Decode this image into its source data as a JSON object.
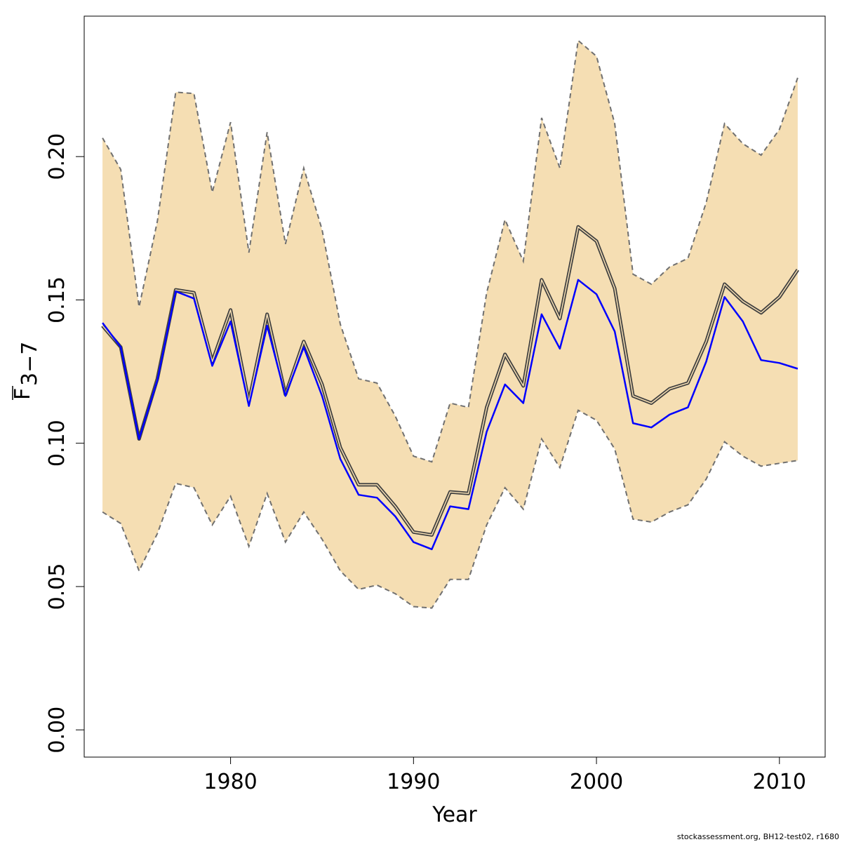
{
  "chart_data": {
    "type": "line",
    "xlabel": "Year",
    "ylabel": {
      "base": "F",
      "subscript": "3−7"
    },
    "xlim": [
      1972,
      2012.5
    ],
    "ylim": [
      -0.0095,
      0.249
    ],
    "xticks": [
      1980,
      1990,
      2000,
      2010
    ],
    "yticks": [
      0.0,
      0.05,
      0.1,
      0.15,
      0.2
    ],
    "ytick_labels": [
      "0.00",
      "0.05",
      "0.10",
      "0.15",
      "0.20"
    ],
    "grid": false,
    "x": [
      1973,
      1974,
      1975,
      1976,
      1977,
      1978,
      1979,
      1980,
      1981,
      1982,
      1983,
      1984,
      1985,
      1986,
      1987,
      1988,
      1989,
      1990,
      1991,
      1992,
      1993,
      1994,
      1995,
      1996,
      1997,
      1998,
      1999,
      2000,
      2001,
      2002,
      2003,
      2004,
      2005,
      2006,
      2007,
      2008,
      2009,
      2010,
      2011
    ],
    "band": {
      "upper": [
        0.2065,
        0.1955,
        0.1475,
        0.1775,
        0.2225,
        0.222,
        0.1875,
        0.212,
        0.1665,
        0.2085,
        0.1695,
        0.196,
        0.1745,
        0.1415,
        0.1225,
        0.121,
        0.1095,
        0.0955,
        0.0935,
        0.114,
        0.1125,
        0.1525,
        0.178,
        0.1635,
        0.2135,
        0.196,
        0.2405,
        0.235,
        0.2115,
        0.159,
        0.1555,
        0.1615,
        0.1645,
        0.184,
        0.2115,
        0.2045,
        0.2005,
        0.2095,
        0.2275
      ],
      "lower": [
        0.076,
        0.072,
        0.0555,
        0.0685,
        0.086,
        0.0845,
        0.0715,
        0.0815,
        0.064,
        0.0825,
        0.0655,
        0.076,
        0.0665,
        0.0555,
        0.049,
        0.0505,
        0.0475,
        0.043,
        0.0425,
        0.0525,
        0.0525,
        0.0715,
        0.0845,
        0.077,
        0.1015,
        0.0915,
        0.1115,
        0.108,
        0.098,
        0.0735,
        0.0725,
        0.076,
        0.0785,
        0.0875,
        0.1005,
        0.0955,
        0.092,
        0.093,
        0.094
      ],
      "fill": "#f5deb3",
      "edge_color": "#707070"
    },
    "series": [
      {
        "color": "#404040",
        "double_line": true,
        "values": [
          0.141,
          0.1335,
          0.1015,
          0.1225,
          0.1535,
          0.1525,
          0.1285,
          0.1465,
          0.1145,
          0.145,
          0.117,
          0.1355,
          0.1205,
          0.0985,
          0.0855,
          0.0855,
          0.078,
          0.069,
          0.068,
          0.083,
          0.0825,
          0.1125,
          0.131,
          0.12,
          0.157,
          0.1435,
          0.1755,
          0.1705,
          0.154,
          0.1165,
          0.114,
          0.119,
          0.121,
          0.1355,
          0.1555,
          0.1495,
          0.1455,
          0.151,
          0.1605
        ]
      },
      {
        "color": "#0000ff",
        "double_line": false,
        "values": [
          0.142,
          0.1335,
          0.1015,
          0.122,
          0.153,
          0.1505,
          0.127,
          0.1425,
          0.113,
          0.141,
          0.1165,
          0.1335,
          0.1165,
          0.0945,
          0.082,
          0.081,
          0.0745,
          0.0655,
          0.063,
          0.078,
          0.077,
          0.104,
          0.1205,
          0.114,
          0.145,
          0.133,
          0.157,
          0.152,
          0.139,
          0.107,
          0.1055,
          0.11,
          0.1125,
          0.1285,
          0.151,
          0.1425,
          0.129,
          0.128,
          0.126
        ]
      }
    ]
  },
  "footer": "stockassessment.org, BH12-test02, r1680"
}
